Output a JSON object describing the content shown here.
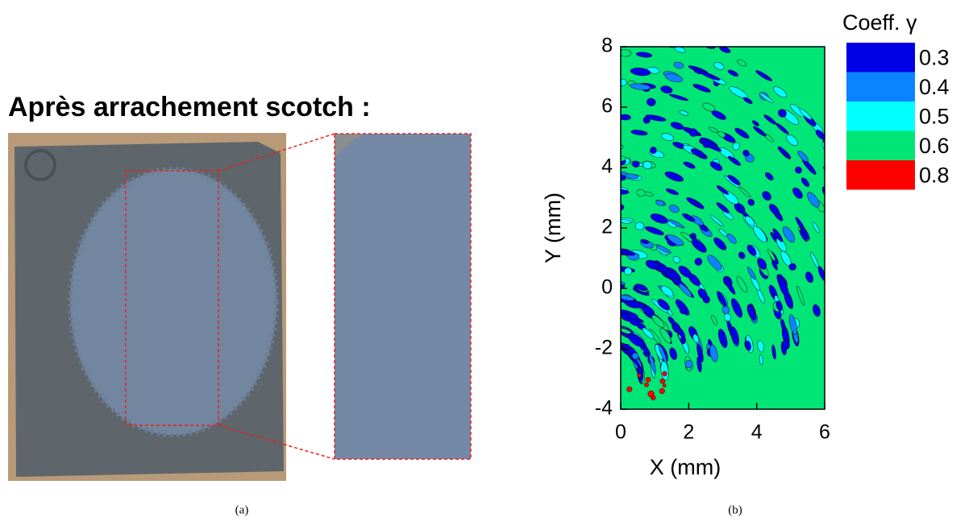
{
  "panel_a": {
    "title": "Après arrachement scotch :",
    "caption": "(a)"
  },
  "chart_data": {
    "type": "contour",
    "xlabel": "X (mm)",
    "ylabel": "Y (mm)",
    "xlim": [
      0,
      6
    ],
    "ylim": [
      -4,
      8
    ],
    "xticks": [
      0,
      2,
      4,
      6
    ],
    "yticks": [
      -4,
      -2,
      0,
      2,
      4,
      6,
      8
    ],
    "legend_title": "Coeff. γ",
    "levels": [
      0.3,
      0.4,
      0.5,
      0.6,
      0.8
    ],
    "colors": [
      "#0000e6",
      "#0a84ff",
      "#00ffff",
      "#00e676",
      "#ff0000"
    ]
  },
  "caption_b": "(b)"
}
